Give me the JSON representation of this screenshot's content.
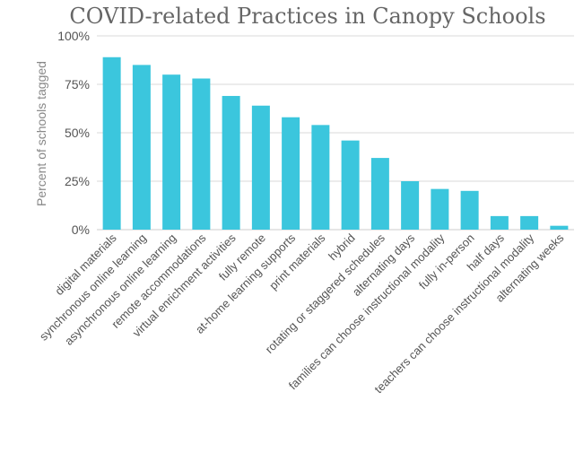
{
  "chart_data": {
    "type": "bar",
    "title": "COVID-related Practices in Canopy Schools",
    "xlabel": "",
    "ylabel": "Percent of schools tagged",
    "ylim": [
      0,
      100
    ],
    "yticks": [
      0,
      25,
      50,
      75,
      100
    ],
    "ytick_labels": [
      "0%",
      "25%",
      "50%",
      "75%",
      "100%"
    ],
    "grid": true,
    "bar_color": "#3bc6dd",
    "categories": [
      "digital materials",
      "synchronous online learning",
      "asynchronous online learning",
      "remote accommodations",
      "virtual enrichment activities",
      "fully remote",
      "at-home learning supports",
      "print materials",
      "hybrid",
      "rotating or staggered schedules",
      "alternating days",
      "families can choose instructional modality",
      "fully in-person",
      "half days",
      "teachers can choose instructional modality",
      "alternating weeks"
    ],
    "values": [
      89,
      85,
      80,
      78,
      69,
      64,
      58,
      54,
      46,
      37,
      25,
      21,
      20,
      7,
      7,
      2
    ]
  }
}
